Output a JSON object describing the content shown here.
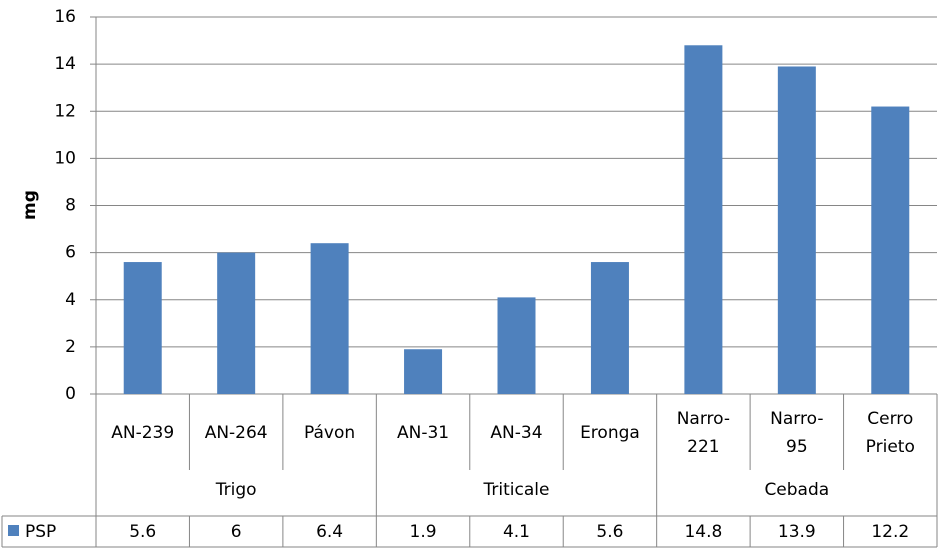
{
  "chart_data": {
    "type": "bar",
    "y_label": "mg",
    "categories": [
      "AN-239",
      "AN-264",
      "Pávon",
      "AN-31",
      "AN-34",
      "Eronga",
      "Narro-221",
      "Narro-95",
      "Cerro Prieto"
    ],
    "groups": [
      {
        "name": "Trigo",
        "span": 3
      },
      {
        "name": "Triticale",
        "span": 3
      },
      {
        "name": "Cebada",
        "span": 3
      }
    ],
    "series": [
      {
        "name": "PSP",
        "color": "#4f81bd",
        "values": [
          5.6,
          6,
          6.4,
          1.9,
          4.1,
          5.6,
          14.8,
          13.9,
          12.2
        ]
      }
    ],
    "ylim": [
      0,
      16
    ],
    "yticks": [
      0,
      2,
      4,
      6,
      8,
      10,
      12,
      14,
      16
    ],
    "grid": true,
    "data_table": true
  }
}
